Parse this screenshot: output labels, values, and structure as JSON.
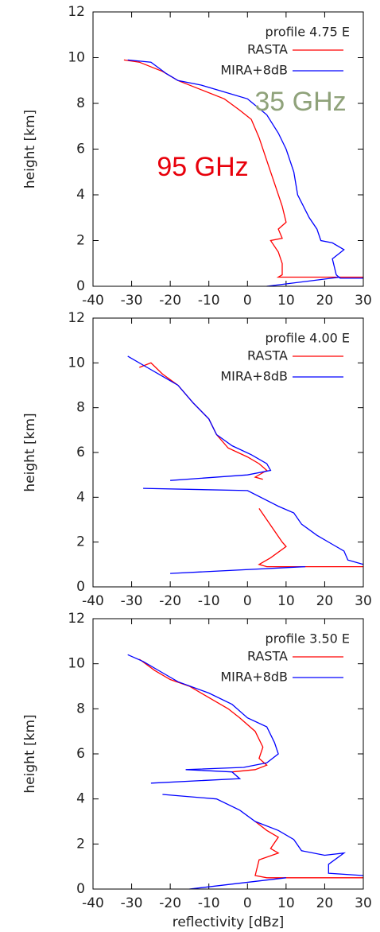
{
  "chart_data": [
    {
      "type": "line",
      "legend_title": "profile 4.75 E",
      "ylabel": "height [km]",
      "xlim": [
        -40,
        30
      ],
      "ylim": [
        0,
        12
      ],
      "xticks": [
        -40,
        -30,
        -20,
        -10,
        0,
        10,
        20,
        30
      ],
      "yticks": [
        0,
        2,
        4,
        6,
        8,
        10,
        12
      ],
      "annotations": [
        {
          "text": "35 GHz",
          "color": "#8fa27a"
        },
        {
          "text": "95 GHz",
          "color": "#e8000b"
        }
      ],
      "series": [
        {
          "name": "RASTA",
          "color": "#ff0000",
          "x": [
            -32,
            -28,
            -22,
            -18,
            -12,
            -6,
            -2,
            1,
            3,
            5,
            7,
            9,
            10,
            8,
            9,
            6,
            8,
            9,
            9,
            8,
            30
          ],
          "y": [
            9.9,
            9.8,
            9.4,
            9.0,
            8.6,
            8.2,
            7.7,
            7.3,
            6.5,
            5.5,
            4.5,
            3.5,
            2.8,
            2.5,
            2.1,
            2.0,
            1.5,
            1.0,
            0.5,
            0.4,
            0.4
          ]
        },
        {
          "name": "MIRA+8dB",
          "color": "#0000ff",
          "x": [
            -31,
            -25,
            -21,
            -18,
            -12,
            -6,
            0,
            5,
            8,
            10,
            12,
            13,
            16,
            18,
            19,
            22,
            25,
            22,
            23,
            24,
            30,
            null,
            24,
            5
          ],
          "y": [
            9.9,
            9.8,
            9.3,
            9.0,
            8.8,
            8.5,
            8.2,
            7.5,
            6.7,
            6.0,
            5.0,
            4.0,
            3.0,
            2.5,
            2.0,
            1.9,
            1.6,
            1.2,
            0.5,
            0.35,
            0.35,
            null,
            0.4,
            0
          ]
        }
      ]
    },
    {
      "type": "line",
      "legend_title": "profile 4.00 E",
      "ylabel": "height [km]",
      "xlim": [
        -40,
        30
      ],
      "ylim": [
        0,
        12
      ],
      "xticks": [
        -40,
        -30,
        -20,
        -10,
        0,
        10,
        20,
        30
      ],
      "yticks": [
        0,
        2,
        4,
        6,
        8,
        10,
        12
      ],
      "series": [
        {
          "name": "RASTA",
          "color": "#ff0000",
          "x": [
            -28,
            -25,
            -22,
            -18,
            -14,
            -10,
            -8,
            -5,
            0,
            3,
            5,
            2,
            4,
            null,
            3,
            5,
            7,
            9,
            10,
            6,
            3,
            5,
            30
          ],
          "y": [
            9.8,
            10.0,
            9.5,
            9.0,
            8.2,
            7.5,
            6.8,
            6.2,
            5.8,
            5.5,
            5.2,
            4.9,
            4.8,
            null,
            3.5,
            3.0,
            2.5,
            2.0,
            1.8,
            1.3,
            1.0,
            0.9,
            0.9
          ]
        },
        {
          "name": "MIRA+8dB",
          "color": "#0000ff",
          "x": [
            -31,
            -26,
            -22,
            -18,
            -14,
            -10,
            -8,
            -4,
            1,
            5,
            6,
            0,
            -20,
            null,
            -27,
            0,
            8,
            12,
            14,
            18,
            22,
            25,
            26,
            30,
            null,
            15,
            -20
          ],
          "y": [
            10.3,
            9.8,
            9.4,
            9.0,
            8.2,
            7.5,
            6.8,
            6.3,
            5.9,
            5.5,
            5.2,
            5.0,
            4.75,
            null,
            4.4,
            4.3,
            3.6,
            3.3,
            2.8,
            2.3,
            1.9,
            1.6,
            1.2,
            1.0,
            null,
            0.9,
            0.6
          ]
        }
      ]
    },
    {
      "type": "line",
      "legend_title": "profile 3.50 E",
      "ylabel": "height [km]",
      "xlabel": "reflectivity [dBz]",
      "xlim": [
        -40,
        30
      ],
      "ylim": [
        0,
        12
      ],
      "xticks": [
        -40,
        -30,
        -20,
        -10,
        0,
        10,
        20,
        30
      ],
      "yticks": [
        0,
        2,
        4,
        6,
        8,
        10,
        12
      ],
      "series": [
        {
          "name": "RASTA",
          "color": "#ff0000",
          "x": [
            -28,
            -24,
            -20,
            -15,
            -10,
            -5,
            -2,
            2,
            4,
            3,
            5,
            2,
            -4,
            null,
            2,
            5,
            8,
            6,
            8,
            3,
            2,
            5,
            30
          ],
          "y": [
            10.2,
            9.7,
            9.3,
            9.0,
            8.5,
            8.0,
            7.6,
            7.0,
            6.3,
            5.8,
            5.5,
            5.3,
            5.2,
            null,
            3.0,
            2.6,
            2.3,
            1.8,
            1.6,
            1.3,
            0.6,
            0.5,
            0.5
          ]
        },
        {
          "name": "MIRA+8dB",
          "color": "#0000ff",
          "x": [
            -31,
            -27,
            -22,
            -18,
            -10,
            -4,
            0,
            5,
            7,
            8,
            5,
            -1,
            -16,
            -4,
            -2,
            -25,
            null,
            -22,
            -8,
            -2,
            2,
            8,
            12,
            14,
            20,
            25,
            21,
            21,
            30,
            null,
            10,
            -15
          ],
          "y": [
            10.4,
            10.1,
            9.6,
            9.2,
            8.7,
            8.2,
            7.6,
            7.2,
            6.5,
            6.0,
            5.6,
            5.4,
            5.3,
            5.2,
            4.9,
            4.7,
            null,
            4.2,
            4.0,
            3.5,
            3.0,
            2.6,
            2.2,
            1.7,
            1.5,
            1.6,
            1.1,
            0.7,
            0.6,
            null,
            0.5,
            0
          ]
        }
      ]
    }
  ]
}
